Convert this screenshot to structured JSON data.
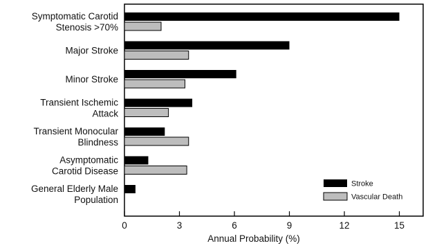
{
  "chart_data": {
    "type": "bar",
    "orientation": "horizontal",
    "categories": [
      [
        "Symptomatic Carotid",
        "Stenosis >70%"
      ],
      [
        "Major Stroke"
      ],
      [
        "Minor Stroke"
      ],
      [
        "Transient Ischemic",
        "Attack"
      ],
      [
        "Transient Monocular",
        "Blindness"
      ],
      [
        "Asymptomatic",
        "Carotid Disease"
      ],
      [
        "General Elderly Male",
        "Population"
      ]
    ],
    "series": [
      {
        "name": "Stroke",
        "color": "#000000",
        "values": [
          15.0,
          9.0,
          6.1,
          3.7,
          2.2,
          1.3,
          0.6
        ]
      },
      {
        "name": "Vascular Death",
        "color": "#bdbdbd",
        "values": [
          2.0,
          3.5,
          3.3,
          2.4,
          3.5,
          3.4,
          null
        ]
      }
    ],
    "xlabel": "Annual Probability (%)",
    "xlim": [
      0,
      16.3
    ],
    "xticks": [
      0,
      3,
      6,
      9,
      12,
      15
    ],
    "xtick_labels": [
      "0",
      "3",
      "6",
      "9",
      "12",
      "15"
    ],
    "grid": false,
    "legend_position": "bottom-right"
  }
}
